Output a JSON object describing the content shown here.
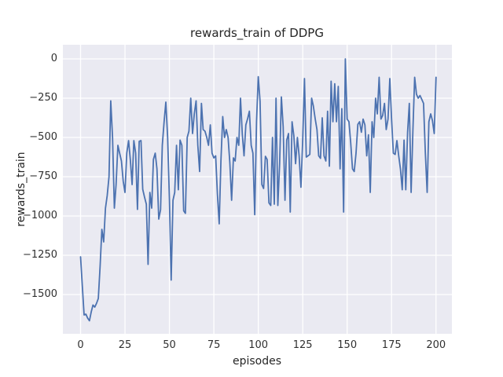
{
  "figure": {
    "title": "rewards_train of DDPG"
  },
  "chart_data": {
    "type": "line",
    "title": "rewards_train of DDPG",
    "xlabel": "episodes",
    "ylabel": "rewards_train",
    "x_ticks": [
      0,
      25,
      50,
      75,
      100,
      125,
      150,
      175,
      200
    ],
    "y_ticks": [
      0,
      -250,
      -500,
      -750,
      -1000,
      -1250,
      -1500
    ],
    "xlim": [
      -9.95,
      208.95
    ],
    "ylim": [
      -1750,
      90
    ],
    "grid": true,
    "legend_position": "none",
    "style": {
      "axes_background": "#eaeaf2",
      "grid_color": "#ffffff",
      "figure_background": "#ffffff",
      "line_color": "#4c72b0",
      "text_color": "#262626",
      "tick_color": "#303030",
      "line_width": 1.8,
      "grid_width": 1.3
    },
    "series": [
      {
        "name": "rewards_train",
        "color": "#4c72b0",
        "x_start": 0,
        "x_step": 1,
        "values": [
          -1260,
          -1450,
          -1630,
          -1625,
          -1650,
          -1667,
          -1610,
          -1567,
          -1580,
          -1555,
          -1525,
          -1317,
          -1085,
          -1165,
          -950,
          -870,
          -750,
          -267,
          -500,
          -950,
          -800,
          -550,
          -600,
          -650,
          -780,
          -850,
          -600,
          -520,
          -640,
          -800,
          -520,
          -600,
          -958,
          -525,
          -520,
          -830,
          -880,
          -925,
          -1308,
          -850,
          -950,
          -640,
          -600,
          -700,
          -1020,
          -960,
          -550,
          -400,
          -275,
          -500,
          -900,
          -1408,
          -900,
          -850,
          -550,
          -833,
          -517,
          -550,
          -967,
          -983,
          -500,
          -460,
          -250,
          -475,
          -350,
          -267,
          -550,
          -717,
          -283,
          -450,
          -460,
          -500,
          -550,
          -420,
          -600,
          -630,
          -617,
          -858,
          -1050,
          -650,
          -367,
          -500,
          -450,
          -500,
          -658,
          -900,
          -630,
          -650,
          -500,
          -550,
          -250,
          -480,
          -617,
          -420,
          -380,
          -333,
          -550,
          -600,
          -992,
          -400,
          -113,
          -270,
          -800,
          -825,
          -620,
          -640,
          -917,
          -933,
          -500,
          -925,
          -250,
          -933,
          -667,
          -242,
          -433,
          -900,
          -517,
          -475,
          -975,
          -400,
          -490,
          -667,
          -500,
          -617,
          -817,
          -510,
          -125,
          -625,
          -617,
          -608,
          -250,
          -300,
          -380,
          -450,
          -617,
          -633,
          -375,
          -617,
          -650,
          -333,
          -683,
          -142,
          -400,
          -158,
          -400,
          -175,
          -700,
          -317,
          -975,
          0,
          -383,
          -400,
          -533,
          -700,
          -717,
          -600,
          -417,
          -400,
          -467,
          -383,
          -420,
          -617,
          -483,
          -850,
          -400,
          -500,
          -250,
          -350,
          -117,
          -383,
          -360,
          -283,
          -450,
          -383,
          -125,
          -380,
          -600,
          -608,
          -520,
          -617,
          -700,
          -833,
          -517,
          -833,
          -467,
          -283,
          -850,
          -450,
          -117,
          -225,
          -250,
          -233,
          -258,
          -283,
          -600,
          -850,
          -400,
          -350,
          -392,
          -475,
          -117
        ]
      }
    ]
  }
}
